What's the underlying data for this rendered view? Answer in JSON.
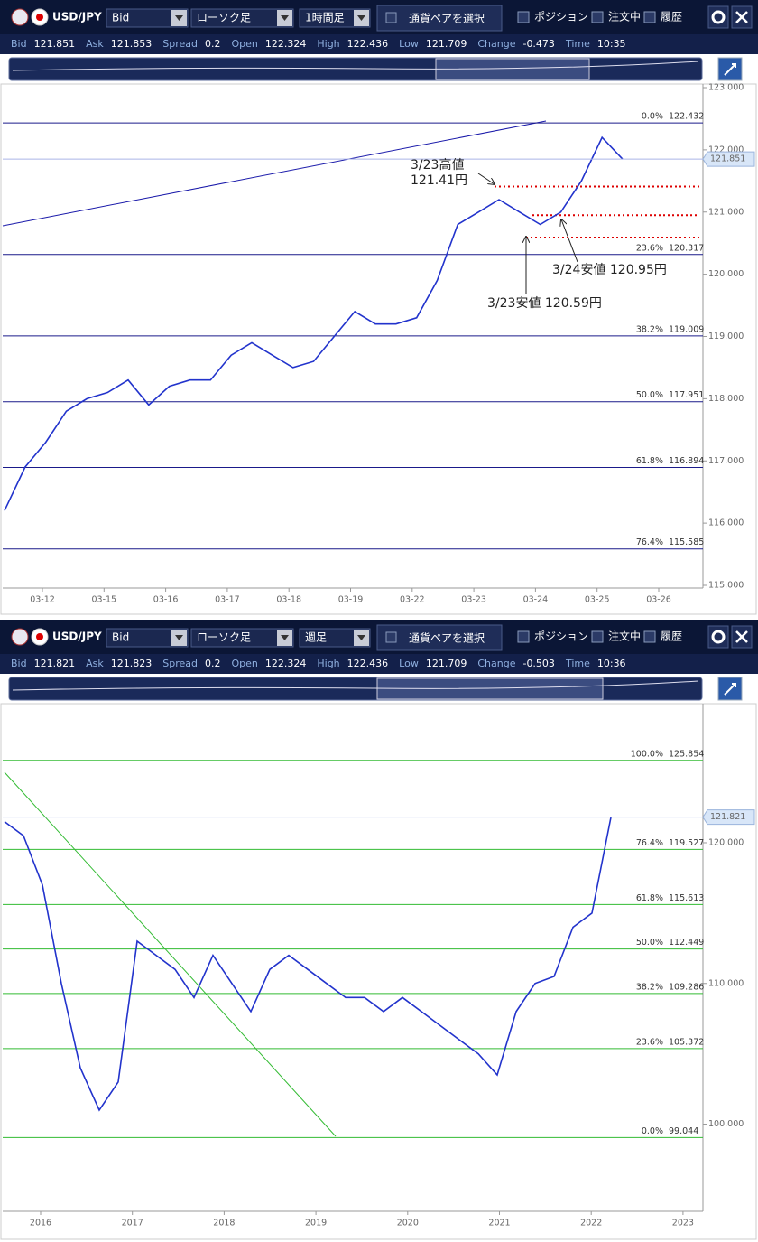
{
  "panels": [
    {
      "toolbar": {
        "symbol": "USD/JPY",
        "price_type": "Bid",
        "chart_style": "ローソク足",
        "period": "1時間足",
        "select_pair": "通貨ペアを選択",
        "checkboxes": [
          "ポジション",
          "注文中",
          "履歴"
        ]
      },
      "info": [
        {
          "label": "Bid",
          "value": 121.851
        },
        {
          "label": "Ask",
          "value": 121.853
        },
        {
          "label": "Spread",
          "value": 0.2
        },
        {
          "label": "Open",
          "value": 122.324
        },
        {
          "label": "High",
          "value": 122.436
        },
        {
          "label": "Low",
          "value": 121.709
        },
        {
          "label": "Change",
          "value": -0.473
        },
        {
          "label": "Time",
          "value": "10:35"
        }
      ],
      "chart": {
        "type": "line",
        "x_labels": [
          "03-12",
          "03-15",
          "03-16",
          "03-17",
          "03-18",
          "03-19",
          "03-22",
          "03-23",
          "03-24",
          "03-25",
          "03-26"
        ],
        "ylim": [
          115,
          123
        ],
        "yticks": [
          {
            "value": 115,
            "label": "115.000"
          },
          {
            "value": 116,
            "label": "116.000"
          },
          {
            "value": 117,
            "label": "117.000"
          },
          {
            "value": 118,
            "label": "118.000"
          },
          {
            "value": 119,
            "label": "119.000"
          },
          {
            "value": 120,
            "label": "120.000"
          },
          {
            "value": 121,
            "label": "121.000"
          },
          {
            "value": 122,
            "label": "122.000"
          },
          {
            "value": 123,
            "label": "123.000"
          }
        ],
        "price": {
          "color": "#2233cc",
          "values": [
            116.2,
            116.9,
            117.3,
            117.8,
            118.0,
            118.1,
            118.3,
            117.9,
            118.2,
            118.3,
            118.3,
            118.7,
            118.9,
            118.7,
            118.5,
            118.6,
            119.0,
            119.4,
            119.2,
            119.2,
            119.3,
            119.9,
            120.8,
            121.0,
            121.2,
            121.0,
            120.8,
            121.0,
            121.5,
            122.2,
            121.85
          ]
        },
        "current_price": 121.851,
        "level_color": "#1a1a8a",
        "fib_levels": [
          {
            "label": "0.0%",
            "value": 122.432
          },
          {
            "label": "23.6%",
            "value": 120.317
          },
          {
            "label": "38.2%",
            "value": 119.009
          },
          {
            "label": "50.0%",
            "value": 117.951
          },
          {
            "label": "61.8%",
            "value": 116.894
          },
          {
            "label": "76.4%",
            "value": 115.585
          }
        ],
        "marked_levels": [
          121.41,
          120.95,
          120.59
        ],
        "annotations": [
          "3/23高値",
          "121.41円",
          "3/24安値 120.95円",
          "3/23安値 120.59円"
        ]
      }
    },
    {
      "toolbar": {
        "symbol": "USD/JPY",
        "price_type": "Bid",
        "chart_style": "ローソク足",
        "period": "週足",
        "select_pair": "通貨ペアを選択",
        "checkboxes": [
          "ポジション",
          "注文中",
          "履歴"
        ]
      },
      "info": [
        {
          "label": "Bid",
          "value": 121.821
        },
        {
          "label": "Ask",
          "value": 121.823
        },
        {
          "label": "Spread",
          "value": 0.2
        },
        {
          "label": "Open",
          "value": 122.324
        },
        {
          "label": "High",
          "value": 122.436
        },
        {
          "label": "Low",
          "value": 121.709
        },
        {
          "label": "Change",
          "value": -0.503
        },
        {
          "label": "Time",
          "value": "10:36"
        }
      ],
      "chart": {
        "type": "line",
        "x_labels": [
          "2016",
          "2017",
          "2018",
          "2019",
          "2020",
          "2021",
          "2022",
          "2023"
        ],
        "ylim": [
          94,
          129.5
        ],
        "yticks": [
          {
            "value": 100,
            "label": "100.000"
          },
          {
            "value": 110,
            "label": "110.000"
          },
          {
            "value": 120,
            "label": "120.000"
          }
        ],
        "price": {
          "color": "#2233cc",
          "values": [
            121.5,
            120.5,
            117,
            110,
            104,
            101,
            103,
            113,
            112,
            111,
            109,
            112,
            110,
            108,
            111,
            112,
            111,
            110,
            109,
            109,
            108,
            109,
            108,
            107,
            106,
            105,
            103.5,
            108,
            110,
            110.5,
            114,
            115,
            121.8
          ]
        },
        "current_price": 121.821,
        "level_color": "#33bb33",
        "fib_levels": [
          {
            "label": "100.0%",
            "value": 125.854
          },
          {
            "label": "76.4%",
            "value": 119.527
          },
          {
            "label": "61.8%",
            "value": 115.613
          },
          {
            "label": "50.0%",
            "value": 112.449
          },
          {
            "label": "38.2%",
            "value": 109.286
          },
          {
            "label": "23.6%",
            "value": 105.372
          },
          {
            "label": "0.0%",
            "value": 99.044
          }
        ],
        "marked_levels": [],
        "annotations": []
      }
    }
  ]
}
